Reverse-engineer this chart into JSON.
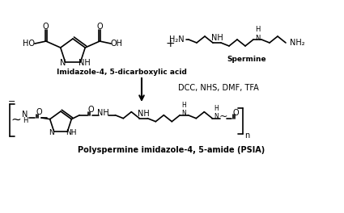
{
  "bg_color": "#ffffff",
  "text_color": "#000000",
  "figsize": [
    4.25,
    2.64
  ],
  "dpi": 100,
  "label_imidazole": "Imidazole-4, 5-dicarboxylic acid",
  "label_spermine": "Spermine",
  "label_reagents": "DCC, NHS, DMF, TFA",
  "label_product": "Polyspermine imidazole-4, 5-amide (PSIA)",
  "label_plus": "+",
  "label_n": "n"
}
